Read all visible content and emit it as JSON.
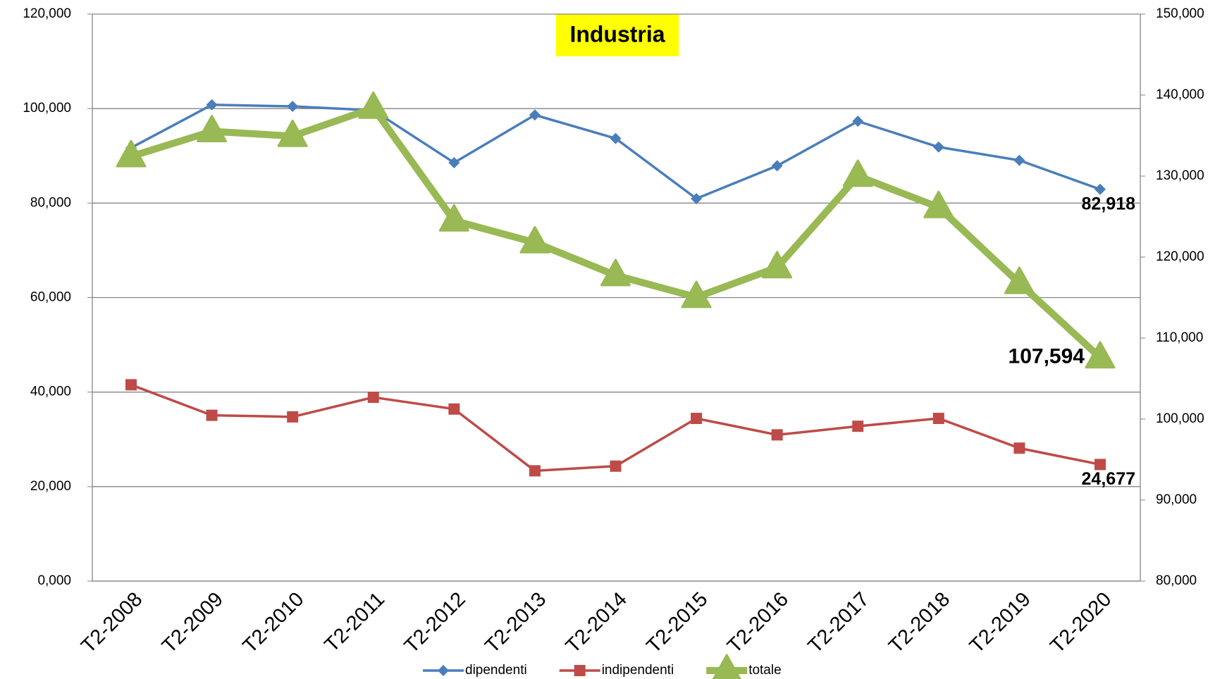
{
  "chart_data": {
    "type": "line",
    "title": "Industria",
    "categories": [
      "T2-2008",
      "T2-2009",
      "T2-2010",
      "T2-2011",
      "T2-2012",
      "T2-2013",
      "T2-2014",
      "T2-2015",
      "T2-2016",
      "T2-2017",
      "T2-2018",
      "T2-2019",
      "T2-2020"
    ],
    "series": [
      {
        "name": "dipendenti",
        "color": "#4a7ebb",
        "marker": "diamond",
        "label_color": "#1f6fbf",
        "values": [
          91700,
          100800,
          100470,
          99640,
          88550,
          98650,
          93680,
          80940,
          87890,
          97320,
          91860,
          89050,
          82918
        ],
        "value_labels": [
          null,
          null,
          null,
          null,
          null,
          null,
          null,
          null,
          null,
          null,
          null,
          null,
          "82,918"
        ]
      },
      {
        "name": "indipendenti",
        "color": "#be4b48",
        "marker": "square",
        "label_color": "#c00000",
        "values": [
          41545,
          35090,
          34760,
          38900,
          36410,
          23340,
          24330,
          34430,
          30950,
          32770,
          34430,
          28140,
          24677
        ],
        "value_labels": [
          null,
          null,
          null,
          null,
          null,
          null,
          null,
          null,
          null,
          null,
          null,
          null,
          "24,677"
        ]
      },
      {
        "name": "totale",
        "color": "#98b954",
        "marker": "triangle",
        "axis": "y2",
        "label_color": "#00b050",
        "values": [
          132430,
          135520,
          134940,
          138410,
          124500,
          121800,
          117750,
          115050,
          118720,
          130010,
          126150,
          116780,
          107594
        ],
        "value_labels": [
          null,
          null,
          null,
          null,
          null,
          null,
          null,
          null,
          null,
          null,
          null,
          null,
          "107,594"
        ]
      }
    ],
    "ylim": [
      0,
      120000
    ],
    "yticks": [
      {
        "value": 0,
        "label": "0,000"
      },
      {
        "value": 20000,
        "label": "20,000"
      },
      {
        "value": 40000,
        "label": "40,000"
      },
      {
        "value": 60000,
        "label": "60,000"
      },
      {
        "value": 80000,
        "label": "80,000"
      },
      {
        "value": 100000,
        "label": "100,000"
      },
      {
        "value": 120000,
        "label": "120,000"
      }
    ],
    "y2lim": [
      80000,
      150000
    ],
    "y2ticks": [
      {
        "value": 80000,
        "label": "80,000"
      },
      {
        "value": 90000,
        "label": "90,000"
      },
      {
        "value": 100000,
        "label": "100,000"
      },
      {
        "value": 110000,
        "label": "110,000"
      },
      {
        "value": 120000,
        "label": "120,000"
      },
      {
        "value": 130000,
        "label": "130,000"
      },
      {
        "value": 140000,
        "label": "140,000"
      },
      {
        "value": 150000,
        "label": "150,000"
      }
    ],
    "grid": true,
    "legend": "bottom"
  }
}
